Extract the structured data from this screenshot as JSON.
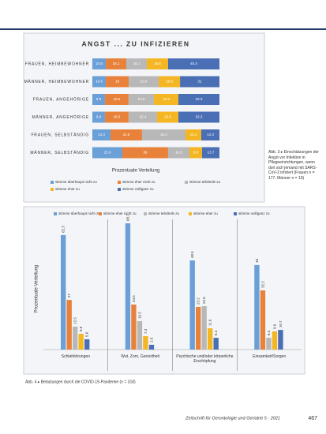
{
  "chart_data": [
    {
      "type": "stacked-bar-horizontal",
      "title": "ANGST ... ZU INFIZIEREN",
      "xlabel": "Prozentuale Verteilung",
      "categories": [
        "FRAUEN, HEIMBEWOHNER",
        "MÄNNER, HEIMBEWOHNER",
        "FRAUEN, ANGEHÖRIGE",
        "MÄNNER, ANGEHÖRIGE",
        "FRAUEN, SELBSTÄNDIG",
        "MÄNNER, SELBSTÄNDIG"
      ],
      "xlim": [
        0,
        100
      ],
      "series": [
        {
          "name": "stimme überhaupt nicht zu",
          "color": "#6a9fd8",
          "values": [
            10.6,
            10.6,
            9.9,
            9.9,
            14.3,
            23.6
          ]
        },
        {
          "name": "stimme eher nicht zu",
          "color": "#e8823a",
          "values": [
            16.1,
            18.0,
            18.6,
            18.6,
            24.8,
            36.0
          ]
        },
        {
          "name": "stimme teils/teils zu",
          "color": "#b8b8b8",
          "values": [
            16.1,
            23.6,
            19.9,
            22.4,
            34.2,
            16.8
          ]
        },
        {
          "name": "stimme eher zu",
          "color": "#f5b623",
          "values": [
            16.8,
            16.8,
            19.3,
            16.8,
            12.4,
            9.9
          ]
        },
        {
          "name": "stimme voll/ganz zu",
          "color": "#4a6fb5",
          "values": [
            40.4,
            31.0,
            32.3,
            32.3,
            14.3,
            13.7
          ]
        }
      ]
    },
    {
      "type": "grouped-bar",
      "ylabel": "Prozentuale Verteilung",
      "categories": [
        "Schlafstörungen",
        "Wut, Zorn, Gereiztheit",
        "Psychische und/oder körperliche Erschöpfung",
        "Einsamkeit/Sorgen"
      ],
      "ylim": [
        0,
        70
      ],
      "series": [
        {
          "name": "stimme überhaupt nicht zu",
          "color": "#6a9fd8",
          "values": [
            62.3,
            68.7,
            48.5,
            46.0
          ]
        },
        {
          "name": "stimme eher nicht zu",
          "color": "#e8823a",
          "values": [
            27.0,
            24.5,
            23.2,
            32.2
          ]
        },
        {
          "name": "stimme teils/teils zu",
          "color": "#b8b8b8",
          "values": [
            12.5,
            15.5,
            23.6,
            6.4
          ]
        },
        {
          "name": "stimme eher zu",
          "color": "#f5b623",
          "values": [
            8.6,
            7.3,
            11.6,
            9.9
          ]
        },
        {
          "name": "stimme voll/ganz zu",
          "color": "#4a6fb5",
          "values": [
            5.6,
            2.6,
            6.4,
            10.7
          ]
        }
      ]
    }
  ],
  "captions": [
    "Abb. 3 ▸ Einschätzungen der Angst vor Infektion in Pflegeeinrichtungen, wenn dort sich jemand mit SARS-CoV-2 infiziert (Frauen n = 177; Männer n = 19)",
    "Abb. 4 ▸ Belastungen durch die COVID-19-Pandemie (n = 318)"
  ],
  "footer": {
    "journal": "Zeitschrift für Gerontologie und Geriatrie 5 · 2021",
    "page": "467"
  }
}
